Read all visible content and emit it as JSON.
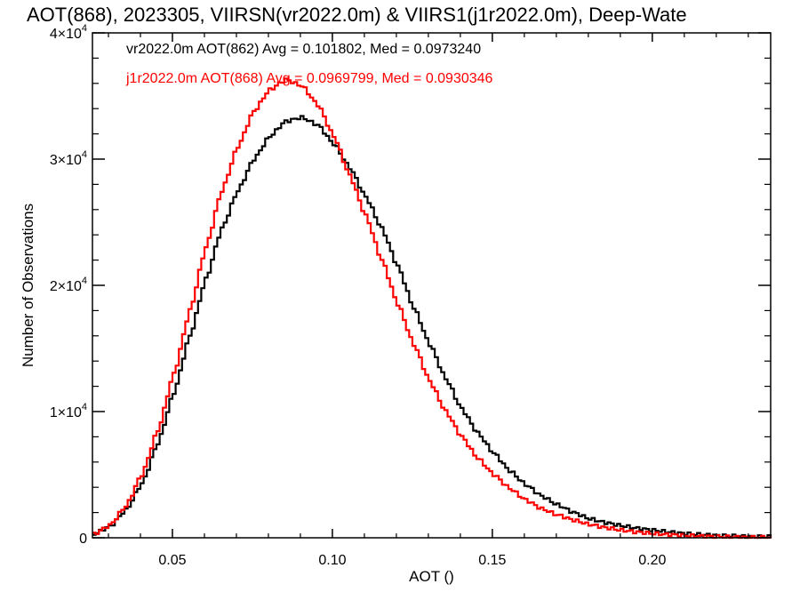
{
  "chart_data": {
    "type": "line",
    "title": "AOT(868), 2023305, VIIRSN(vr2022.0m) & VIIRS1(j1r2022.0m), Deep-Wate",
    "xlabel": "AOT ()",
    "ylabel": "Number of Observations",
    "xlim": [
      0.025,
      0.237
    ],
    "ylim": [
      0,
      40000
    ],
    "x_ticks": [
      0.05,
      0.1,
      0.15,
      0.2
    ],
    "x_tick_labels": [
      "0.05",
      "0.10",
      "0.15",
      "0.20"
    ],
    "y_ticks": [
      {
        "value": 0,
        "mantissa": "0",
        "exponent": ""
      },
      {
        "value": 10000,
        "mantissa": "1×10",
        "exponent": "4"
      },
      {
        "value": 20000,
        "mantissa": "2×10",
        "exponent": "4"
      },
      {
        "value": 30000,
        "mantissa": "3×10",
        "exponent": "4"
      },
      {
        "value": 40000,
        "mantissa": "4×10",
        "exponent": "4"
      }
    ],
    "grid": false,
    "legend_position": "top-left",
    "series": [
      {
        "name": "vr2022.0m",
        "label": "vr2022.0m AOT(862) Avg = 0.101802, Med = 0.0973240",
        "color": "#000000",
        "points": [
          [
            0.025,
            300
          ],
          [
            0.03,
            900
          ],
          [
            0.035,
            2200
          ],
          [
            0.04,
            4300
          ],
          [
            0.045,
            7500
          ],
          [
            0.05,
            11500
          ],
          [
            0.055,
            16000
          ],
          [
            0.06,
            20500
          ],
          [
            0.065,
            24500
          ],
          [
            0.07,
            27500
          ],
          [
            0.075,
            30000
          ],
          [
            0.08,
            31800
          ],
          [
            0.085,
            33000
          ],
          [
            0.09,
            33300
          ],
          [
            0.095,
            32700
          ],
          [
            0.1,
            31200
          ],
          [
            0.105,
            29300
          ],
          [
            0.11,
            27000
          ],
          [
            0.115,
            24500
          ],
          [
            0.12,
            21500
          ],
          [
            0.125,
            18200
          ],
          [
            0.13,
            15300
          ],
          [
            0.135,
            12600
          ],
          [
            0.14,
            10200
          ],
          [
            0.145,
            8300
          ],
          [
            0.15,
            6700
          ],
          [
            0.155,
            5300
          ],
          [
            0.16,
            4200
          ],
          [
            0.165,
            3300
          ],
          [
            0.17,
            2600
          ],
          [
            0.175,
            2000
          ],
          [
            0.18,
            1500
          ],
          [
            0.185,
            1200
          ],
          [
            0.19,
            950
          ],
          [
            0.195,
            750
          ],
          [
            0.2,
            600
          ],
          [
            0.205,
            450
          ],
          [
            0.21,
            330
          ],
          [
            0.215,
            250
          ],
          [
            0.22,
            180
          ],
          [
            0.225,
            140
          ],
          [
            0.23,
            100
          ],
          [
            0.237,
            80
          ]
        ]
      },
      {
        "name": "j1r2022.0m",
        "label": "j1r2022.0m AOT(868) Avg = 0.0969799, Med = 0.0930346",
        "color": "#ff0000",
        "points": [
          [
            0.025,
            300
          ],
          [
            0.03,
            1000
          ],
          [
            0.035,
            2500
          ],
          [
            0.04,
            5000
          ],
          [
            0.045,
            8500
          ],
          [
            0.05,
            13000
          ],
          [
            0.055,
            18000
          ],
          [
            0.06,
            23000
          ],
          [
            0.065,
            27500
          ],
          [
            0.07,
            31000
          ],
          [
            0.075,
            33800
          ],
          [
            0.08,
            35500
          ],
          [
            0.085,
            36300
          ],
          [
            0.09,
            35800
          ],
          [
            0.095,
            34300
          ],
          [
            0.1,
            31800
          ],
          [
            0.105,
            28700
          ],
          [
            0.11,
            25500
          ],
          [
            0.115,
            22000
          ],
          [
            0.12,
            18500
          ],
          [
            0.125,
            15300
          ],
          [
            0.13,
            12400
          ],
          [
            0.135,
            10000
          ],
          [
            0.14,
            8000
          ],
          [
            0.145,
            6300
          ],
          [
            0.15,
            5000
          ],
          [
            0.155,
            3900
          ],
          [
            0.16,
            3000
          ],
          [
            0.165,
            2300
          ],
          [
            0.17,
            1800
          ],
          [
            0.175,
            1400
          ],
          [
            0.18,
            1050
          ],
          [
            0.185,
            800
          ],
          [
            0.19,
            600
          ],
          [
            0.195,
            450
          ],
          [
            0.2,
            330
          ],
          [
            0.205,
            250
          ],
          [
            0.21,
            180
          ],
          [
            0.215,
            130
          ],
          [
            0.22,
            90
          ],
          [
            0.225,
            60
          ],
          [
            0.23,
            40
          ],
          [
            0.237,
            30
          ]
        ]
      }
    ]
  }
}
